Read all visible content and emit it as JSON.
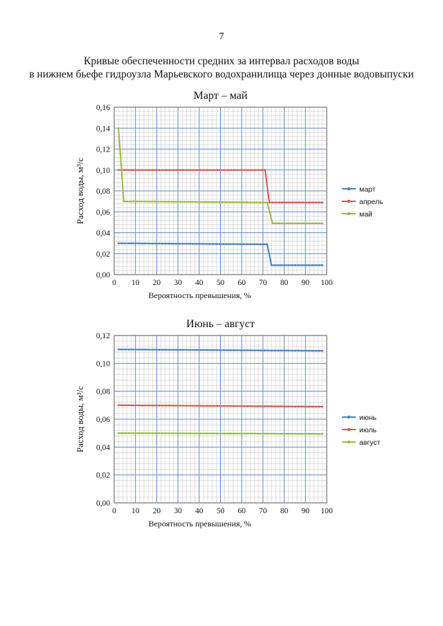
{
  "page_number": "7",
  "title_line1": "Кривые обеспеченности средних за интервал расходов воды",
  "title_line2": "в нижнем бьефе гидроузла Марьевского водохранилища через донные водовыпуски",
  "chart_data": [
    {
      "type": "line",
      "title": "Март – май",
      "xlabel": "Вероятность превышения, %",
      "ylabel": "Расход воды, м³/с",
      "xlim": [
        0,
        100
      ],
      "ylim": [
        0,
        0.16
      ],
      "xticks": [
        0,
        10,
        20,
        30,
        40,
        50,
        60,
        70,
        80,
        90,
        100
      ],
      "xtick_labels": [
        "0",
        "10",
        "20",
        "30",
        "40",
        "50",
        "60",
        "70",
        "80",
        "90",
        "100"
      ],
      "yticks": [
        0,
        0.02,
        0.04,
        0.06,
        0.08,
        0.1,
        0.12,
        0.14,
        0.16
      ],
      "ytick_labels": [
        "0,00",
        "0,02",
        "0,04",
        "0,06",
        "0,08",
        "0,10",
        "0,12",
        "0,14",
        "0,16"
      ],
      "grid": true,
      "legend_position": "right",
      "series": [
        {
          "name": "март",
          "color": "#4a7ebb",
          "x": [
            2,
            72,
            74,
            98
          ],
          "y": [
            0.03,
            0.029,
            0.009,
            0.009
          ]
        },
        {
          "name": "апрель",
          "color": "#d9534f",
          "x": [
            2,
            71,
            73,
            98
          ],
          "y": [
            0.1,
            0.1,
            0.069,
            0.069
          ]
        },
        {
          "name": "май",
          "color": "#9bbb34",
          "x": [
            2,
            4.5,
            72,
            74.5,
            98
          ],
          "y": [
            0.14,
            0.07,
            0.069,
            0.049,
            0.049
          ]
        }
      ]
    },
    {
      "type": "line",
      "title": "Июнь – август",
      "xlabel": "Вероятность превышения, %",
      "ylabel": "Расход воды, м³/с",
      "xlim": [
        0,
        100
      ],
      "ylim": [
        0,
        0.12
      ],
      "xticks": [
        0,
        10,
        20,
        30,
        40,
        50,
        60,
        70,
        80,
        90,
        100
      ],
      "xtick_labels": [
        "0",
        "10",
        "20",
        "30",
        "40",
        "50",
        "60",
        "70",
        "80",
        "90",
        "100"
      ],
      "yticks": [
        0,
        0.02,
        0.04,
        0.06,
        0.08,
        0.1,
        0.12
      ],
      "ytick_labels": [
        "0,00",
        "0,02",
        "0,04",
        "0,06",
        "0,08",
        "0,10",
        "0,12"
      ],
      "grid": true,
      "legend_position": "right",
      "series": [
        {
          "name": "июнь",
          "color": "#4a7ebb",
          "x": [
            2,
            98
          ],
          "y": [
            0.11,
            0.109
          ]
        },
        {
          "name": "июль",
          "color": "#d9534f",
          "x": [
            2,
            98
          ],
          "y": [
            0.07,
            0.069
          ]
        },
        {
          "name": "август",
          "color": "#9bbb34",
          "x": [
            2,
            98
          ],
          "y": [
            0.05,
            0.0495
          ]
        }
      ]
    }
  ]
}
